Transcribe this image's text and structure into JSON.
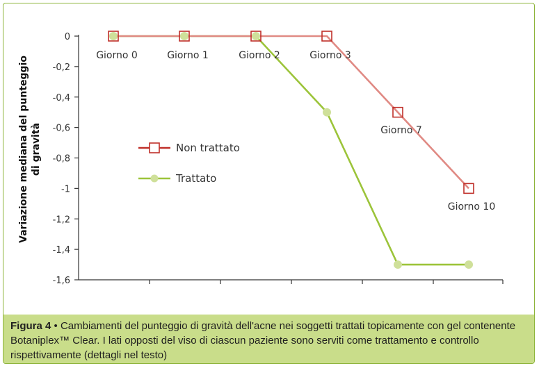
{
  "chart_data": {
    "type": "line",
    "ylabel": "Variazione mediana del punteggio di gravità",
    "ylabel_lines": [
      "Variazione mediana del punteggio",
      "di gravità"
    ],
    "ylim": [
      -1.6,
      0
    ],
    "yticks": [
      0,
      -0.2,
      -0.4,
      -0.6,
      -0.8,
      -1,
      -1.2,
      -1.4,
      -1.6
    ],
    "ytick_labels": [
      "0",
      "-0,2",
      "-0,4",
      "-0,6",
      "-0,8",
      "-1",
      "-1,2",
      "-1,4",
      "-1,6"
    ],
    "x": [
      0,
      1,
      2,
      3,
      4,
      5
    ],
    "legend_position": "center-left",
    "grid": false,
    "series": [
      {
        "name": "Non trattato",
        "color": "#e08a84",
        "legend_color": "#c0302a",
        "marker": "open-square",
        "values": [
          0,
          0,
          0,
          0,
          -0.5,
          -1
        ],
        "point_labels": [
          "Giorno 0",
          "Giorno 1",
          "Giorno 2",
          "Giorno 3",
          "Giorno 7",
          "Giorno 10"
        ]
      },
      {
        "name": "Trattato",
        "color": "#9cc43a",
        "marker_color": "#cfe09a",
        "marker": "filled-circle",
        "values": [
          0,
          0,
          0,
          -0.5,
          -1.5,
          -1.5
        ]
      }
    ]
  },
  "caption": {
    "label": "Figura 4",
    "separator": " • ",
    "text": "Cambiamenti del punteggio di gravità dell'acne nei soggetti trattati topicamente con gel contenente Botaniplex™ Clear. I lati opposti del viso di ciascun paziente sono serviti come trattamento e controllo rispettivamente (dettagli nel testo)"
  }
}
